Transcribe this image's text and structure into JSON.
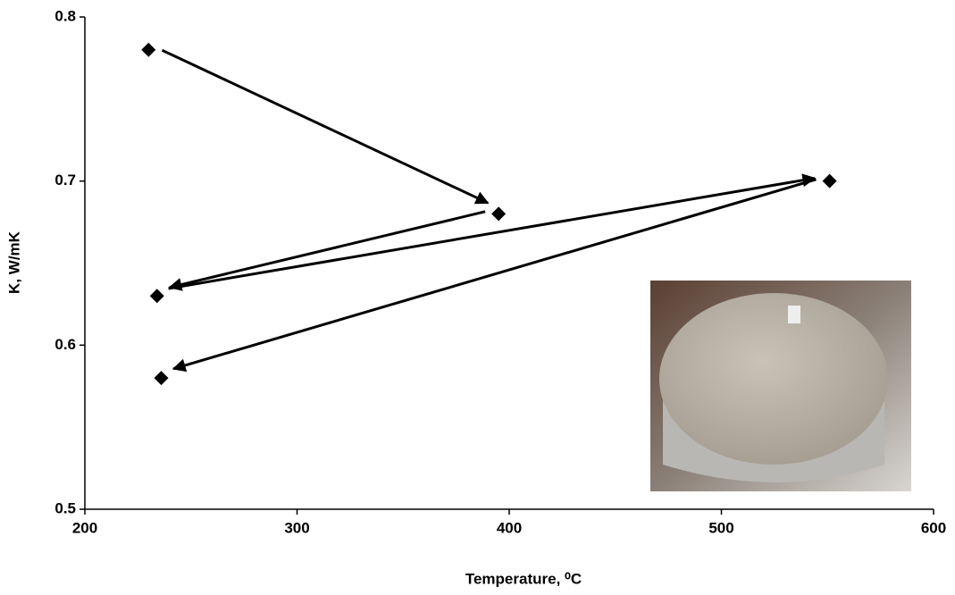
{
  "chart_data": {
    "type": "scatter",
    "x_label": "Temperature, ⁰C",
    "y_label": "K, W/mK",
    "x": [
      230,
      395,
      234,
      551,
      236
    ],
    "values": [
      0.78,
      0.68,
      0.63,
      0.7,
      0.58
    ],
    "color": "#000000",
    "marker": "diamond",
    "arrows": true,
    "xlim": [
      200,
      600
    ],
    "xticks": [
      200,
      300,
      400,
      500,
      600
    ],
    "ylim": [
      0.5,
      0.8
    ],
    "yticks": [
      0.5,
      0.6,
      0.7,
      0.8
    ],
    "grid": false
  }
}
